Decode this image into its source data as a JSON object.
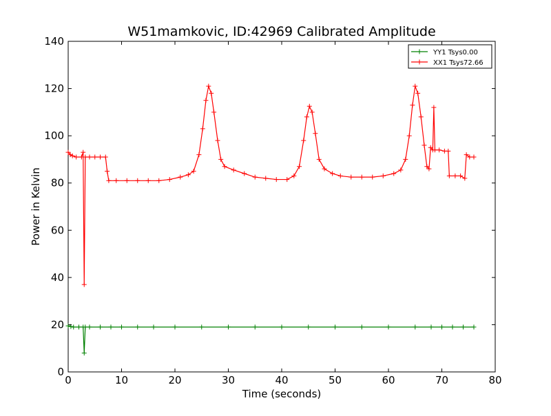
{
  "chart_data": {
    "type": "line",
    "title": "W51mamkovic, ID:42969 Calibrated Amplitude",
    "xlabel": "Time (seconds)",
    "ylabel": "Power in Kelvin",
    "xlim": [
      0,
      80
    ],
    "ylim": [
      0,
      140
    ],
    "x_ticks": [
      0,
      10,
      20,
      30,
      40,
      50,
      60,
      70,
      80
    ],
    "y_ticks": [
      0,
      20,
      40,
      60,
      80,
      100,
      120,
      140
    ],
    "grid": false,
    "legend_position": "top-right",
    "series": [
      {
        "name": "YY1 Tsys0.00",
        "color": "#008000",
        "marker": "+",
        "points": [
          [
            0,
            19.5
          ],
          [
            0.5,
            19.2
          ],
          [
            1,
            19.0
          ],
          [
            2,
            19.0
          ],
          [
            2.8,
            19.0
          ],
          [
            3.0,
            8.0
          ],
          [
            3.2,
            19.0
          ],
          [
            4,
            19.0
          ],
          [
            6,
            19.0
          ],
          [
            8,
            19.0
          ],
          [
            10,
            19.0
          ],
          [
            13,
            19.0
          ],
          [
            16,
            19.0
          ],
          [
            20,
            19.0
          ],
          [
            25,
            19.0
          ],
          [
            30,
            19.0
          ],
          [
            35,
            19.0
          ],
          [
            40,
            19.0
          ],
          [
            45,
            19.0
          ],
          [
            50,
            19.0
          ],
          [
            55,
            19.0
          ],
          [
            60,
            19.0
          ],
          [
            65,
            19.0
          ],
          [
            68,
            19.0
          ],
          [
            70,
            19.0
          ],
          [
            72,
            19.0
          ],
          [
            74,
            19.0
          ],
          [
            76,
            19.0
          ]
        ]
      },
      {
        "name": "XX1 Tsys72.66",
        "color": "#ff0000",
        "marker": "+",
        "points": [
          [
            0,
            93
          ],
          [
            0.4,
            92
          ],
          [
            0.8,
            91.5
          ],
          [
            1.5,
            91
          ],
          [
            2.5,
            91
          ],
          [
            2.8,
            93
          ],
          [
            3.0,
            37
          ],
          [
            3.2,
            91
          ],
          [
            4,
            91
          ],
          [
            5,
            91
          ],
          [
            6,
            91
          ],
          [
            7,
            91
          ],
          [
            7.3,
            85
          ],
          [
            7.6,
            81
          ],
          [
            9,
            81
          ],
          [
            11,
            81
          ],
          [
            13,
            81
          ],
          [
            15,
            81
          ],
          [
            17,
            81
          ],
          [
            19,
            81.5
          ],
          [
            21,
            82.5
          ],
          [
            22.5,
            83.5
          ],
          [
            23.5,
            85
          ],
          [
            24.5,
            92
          ],
          [
            25.2,
            103
          ],
          [
            25.8,
            115
          ],
          [
            26.3,
            121
          ],
          [
            26.8,
            118
          ],
          [
            27.3,
            110
          ],
          [
            28,
            98
          ],
          [
            28.6,
            90
          ],
          [
            29.3,
            87
          ],
          [
            31,
            85.5
          ],
          [
            33,
            84
          ],
          [
            35,
            82.5
          ],
          [
            37,
            82
          ],
          [
            39,
            81.5
          ],
          [
            41,
            81.5
          ],
          [
            42.3,
            83
          ],
          [
            43.3,
            87
          ],
          [
            44.1,
            98
          ],
          [
            44.7,
            108
          ],
          [
            45.2,
            112.5
          ],
          [
            45.7,
            110
          ],
          [
            46.3,
            101
          ],
          [
            47,
            90
          ],
          [
            48,
            86
          ],
          [
            49.5,
            84
          ],
          [
            51,
            83
          ],
          [
            53,
            82.5
          ],
          [
            55,
            82.5
          ],
          [
            57,
            82.5
          ],
          [
            59,
            83
          ],
          [
            61,
            84
          ],
          [
            62.3,
            85.5
          ],
          [
            63.2,
            90
          ],
          [
            63.9,
            100
          ],
          [
            64.5,
            113
          ],
          [
            65.0,
            121
          ],
          [
            65.5,
            118
          ],
          [
            66.1,
            108
          ],
          [
            66.7,
            96
          ],
          [
            67.2,
            87
          ],
          [
            67.6,
            86
          ],
          [
            67.9,
            95
          ],
          [
            68.3,
            94
          ],
          [
            68.5,
            112
          ],
          [
            68.7,
            94
          ],
          [
            69.5,
            94
          ],
          [
            70.5,
            93.5
          ],
          [
            71.2,
            93.5
          ],
          [
            71.4,
            83
          ],
          [
            72.5,
            83
          ],
          [
            73.5,
            83
          ],
          [
            74.3,
            82
          ],
          [
            74.6,
            92
          ],
          [
            75.2,
            91
          ],
          [
            76,
            91
          ]
        ]
      }
    ]
  }
}
